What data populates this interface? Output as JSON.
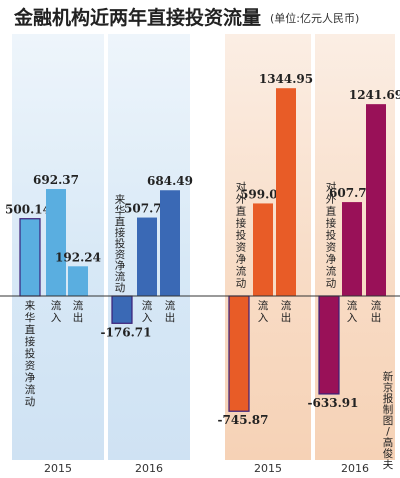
{
  "title": "金融机构近两年直接投资流量",
  "unit": "(单位:亿元人民币)",
  "credit": "新京报制图/高俊夫",
  "chart_data": {
    "type": "bar",
    "zero_baseline": true,
    "panels": [
      {
        "group": "inbound",
        "year": "2015",
        "net_label": "来华直接投资净流动",
        "bars": [
          {
            "label": "",
            "value": 500.14
          },
          {
            "label": "流入",
            "value": 692.37
          },
          {
            "label": "流出",
            "value": 192.24
          }
        ],
        "color": "#5aaee0",
        "net_color": "#5aaee0"
      },
      {
        "group": "inbound",
        "year": "2016",
        "net_label": "来华直接投资净流动",
        "bars": [
          {
            "label": "",
            "value": -176.71
          },
          {
            "label": "流入",
            "value": 507.78
          },
          {
            "label": "流出",
            "value": 684.49
          }
        ],
        "color": "#3a69b5",
        "net_color": "#3a69b5"
      },
      {
        "group": "outbound",
        "year": "2015",
        "net_label": "对外直接投资净流动",
        "bars": [
          {
            "label": "",
            "value": -745.87
          },
          {
            "label": "流入",
            "value": 599.08
          },
          {
            "label": "流出",
            "value": 1344.95
          }
        ],
        "color": "#e85c27",
        "net_color": "#e85c27"
      },
      {
        "group": "outbound",
        "year": "2016",
        "net_label": "对外直接投资净流动",
        "bars": [
          {
            "label": "",
            "value": -633.91
          },
          {
            "label": "流入",
            "value": 607.78
          },
          {
            "label": "流出",
            "value": 1241.69
          }
        ],
        "color": "#991158",
        "net_color": "#991158"
      }
    ]
  }
}
